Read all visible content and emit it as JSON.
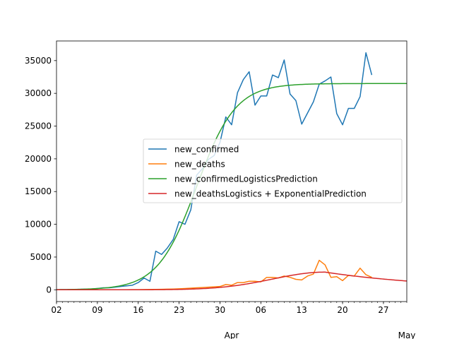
{
  "chart_data": {
    "type": "line",
    "title": "",
    "xlabel": "",
    "ylabel": "",
    "x_axis": {
      "start_date": "2020-03-02",
      "end_date": "2020-05-01",
      "major_ticks": [
        {
          "date": "2020-03-02",
          "label": "02"
        },
        {
          "date": "2020-03-09",
          "label": "09"
        },
        {
          "date": "2020-03-16",
          "label": "16"
        },
        {
          "date": "2020-03-23",
          "label": "23"
        },
        {
          "date": "2020-03-30",
          "label": "30"
        },
        {
          "date": "2020-04-06",
          "label": "06"
        },
        {
          "date": "2020-04-13",
          "label": "13"
        },
        {
          "date": "2020-04-20",
          "label": "20"
        },
        {
          "date": "2020-04-27",
          "label": "27"
        }
      ],
      "month_labels": [
        {
          "date": "2020-04-01",
          "label": "Apr"
        },
        {
          "date": "2020-05-01",
          "label": "May"
        }
      ]
    },
    "ylim": [
      -1800,
      38000
    ],
    "yticks": [
      0,
      5000,
      10000,
      15000,
      20000,
      25000,
      30000,
      35000
    ],
    "grid": false,
    "legend_position": "center-right",
    "series": [
      {
        "name": "new_confirmed",
        "color": "#1f77b4",
        "dates": [
          "2020-03-02",
          "2020-03-03",
          "2020-03-04",
          "2020-03-05",
          "2020-03-06",
          "2020-03-07",
          "2020-03-08",
          "2020-03-09",
          "2020-03-10",
          "2020-03-11",
          "2020-03-12",
          "2020-03-13",
          "2020-03-14",
          "2020-03-15",
          "2020-03-16",
          "2020-03-17",
          "2020-03-18",
          "2020-03-19",
          "2020-03-20",
          "2020-03-21",
          "2020-03-22",
          "2020-03-23",
          "2020-03-24",
          "2020-03-25",
          "2020-03-26",
          "2020-03-27",
          "2020-03-28",
          "2020-03-29",
          "2020-03-30",
          "2020-03-31",
          "2020-04-01",
          "2020-04-02",
          "2020-04-03",
          "2020-04-04",
          "2020-04-05",
          "2020-04-06",
          "2020-04-07",
          "2020-04-08",
          "2020-04-09",
          "2020-04-10",
          "2020-04-11",
          "2020-04-12",
          "2020-04-13",
          "2020-04-14",
          "2020-04-15",
          "2020-04-16",
          "2020-04-17",
          "2020-04-18",
          "2020-04-19",
          "2020-04-20",
          "2020-04-21",
          "2020-04-22",
          "2020-04-23",
          "2020-04-24",
          "2020-04-25"
        ],
        "values": [
          20,
          30,
          40,
          60,
          70,
          100,
          120,
          200,
          300,
          300,
          400,
          500,
          600,
          700,
          1100,
          1800,
          1300,
          5900,
          5400,
          6400,
          7700,
          10400,
          10000,
          12200,
          17500,
          18500,
          19900,
          20500,
          22500,
          26400,
          25200,
          30100,
          32100,
          33300,
          28200,
          29600,
          29600,
          32800,
          32400,
          35100,
          29900,
          28900,
          25300,
          27000,
          28700,
          31400,
          31900,
          32500,
          26900,
          25200,
          27700,
          27700,
          29500,
          36200,
          32800
        ]
      },
      {
        "name": "new_deaths",
        "color": "#ff7f0e",
        "dates": [
          "2020-03-02",
          "2020-03-03",
          "2020-03-04",
          "2020-03-05",
          "2020-03-06",
          "2020-03-07",
          "2020-03-08",
          "2020-03-09",
          "2020-03-10",
          "2020-03-11",
          "2020-03-12",
          "2020-03-13",
          "2020-03-14",
          "2020-03-15",
          "2020-03-16",
          "2020-03-17",
          "2020-03-18",
          "2020-03-19",
          "2020-03-20",
          "2020-03-21",
          "2020-03-22",
          "2020-03-23",
          "2020-03-24",
          "2020-03-25",
          "2020-03-26",
          "2020-03-27",
          "2020-03-28",
          "2020-03-29",
          "2020-03-30",
          "2020-03-31",
          "2020-04-01",
          "2020-04-02",
          "2020-04-03",
          "2020-04-04",
          "2020-04-05",
          "2020-04-06",
          "2020-04-07",
          "2020-04-08",
          "2020-04-09",
          "2020-04-10",
          "2020-04-11",
          "2020-04-12",
          "2020-04-13",
          "2020-04-14",
          "2020-04-15",
          "2020-04-16",
          "2020-04-17",
          "2020-04-18",
          "2020-04-19",
          "2020-04-20",
          "2020-04-21",
          "2020-04-22",
          "2020-04-23",
          "2020-04-24",
          "2020-04-25"
        ],
        "values": [
          0,
          0,
          0,
          0,
          0,
          0,
          0,
          0,
          0,
          0,
          0,
          5,
          10,
          15,
          20,
          40,
          50,
          60,
          80,
          100,
          120,
          150,
          200,
          250,
          300,
          350,
          400,
          450,
          500,
          800,
          700,
          1100,
          1100,
          1300,
          1300,
          1200,
          1900,
          1900,
          1800,
          2100,
          1900,
          1600,
          1500,
          2100,
          2400,
          4500,
          3800,
          1900,
          2000,
          1400,
          2200,
          2100,
          3300,
          2300,
          1900
        ]
      },
      {
        "name": "new_confirmedLogisticsPrediction",
        "color": "#2ca02c",
        "model": "logistic",
        "params": {
          "K": 31500,
          "midpoint_date": "2020-03-26",
          "rate_per_day": 0.3
        }
      },
      {
        "name": "new_deathsLogistics + ExponentialPrediction",
        "color": "#d62728",
        "model": "piecewise",
        "params": {
          "peak": 2700,
          "peak_date": "2020-04-17",
          "rise_sigma_days": 9,
          "decay_per_day": 0.05
        }
      }
    ]
  }
}
